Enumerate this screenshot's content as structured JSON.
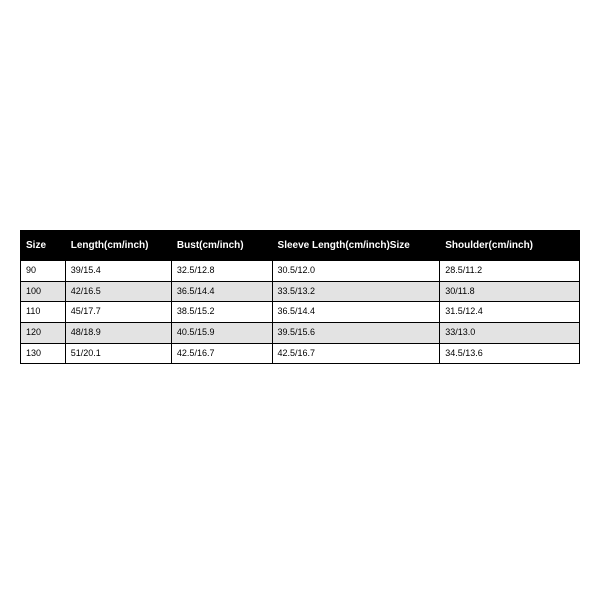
{
  "size_chart": {
    "type": "table",
    "header_bg": "#000000",
    "header_fg": "#ffffff",
    "row_bg_odd": "#ffffff",
    "row_bg_even": "#e3e3e3",
    "border_color": "#000000",
    "font_family": "Arial",
    "header_fontsize_pt": 8,
    "cell_fontsize_pt": 7,
    "col_widths_pct": [
      8,
      19,
      18,
      30,
      25
    ],
    "columns": [
      "Size",
      "Length(cm/inch)",
      "Bust(cm/inch)",
      "Sleeve Length(cm/inch)Size",
      "Shoulder(cm/inch)"
    ],
    "rows": [
      [
        "90",
        "39/15.4",
        "32.5/12.8",
        "30.5/12.0",
        "28.5/11.2"
      ],
      [
        "100",
        "42/16.5",
        "36.5/14.4",
        "33.5/13.2",
        "30/11.8"
      ],
      [
        "110",
        "45/17.7",
        "38.5/15.2",
        "36.5/14.4",
        "31.5/12.4"
      ],
      [
        "120",
        "48/18.9",
        "40.5/15.9",
        "39.5/15.6",
        "33/13.0"
      ],
      [
        "130",
        "51/20.1",
        "42.5/16.7",
        "42.5/16.7",
        "34.5/13.6"
      ]
    ]
  }
}
